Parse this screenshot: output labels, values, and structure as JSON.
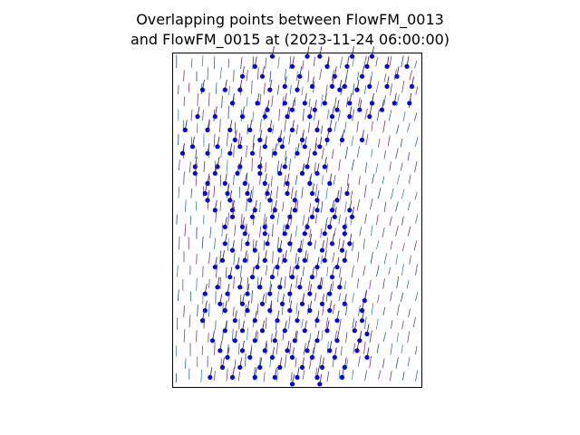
{
  "chart_data": {
    "type": "scatter",
    "title_lines": [
      "Overlapping points between FlowFM_0013",
      "and FlowFM_0015 at (2023-11-24 06:00:00)"
    ],
    "xlabel": "",
    "ylabel": "",
    "ticks": "none",
    "grid": false,
    "legend": "none",
    "description_layers": [
      "velocity quiver arrows (FlowFM_0013)",
      "overlapping points (FlowFM_0015)"
    ],
    "series": [
      {
        "marker_color": "#0000ff",
        "points": [
          [
            0.4,
            0.99
          ],
          [
            0.54,
            0.99
          ],
          [
            0.59,
            0.99
          ],
          [
            0.72,
            0.99
          ],
          [
            0.8,
            0.99
          ],
          [
            0.33,
            0.96
          ],
          [
            0.48,
            0.96
          ],
          [
            0.62,
            0.96
          ],
          [
            0.7,
            0.96
          ],
          [
            0.78,
            0.96
          ],
          [
            0.86,
            0.96
          ],
          [
            0.94,
            0.96
          ],
          [
            0.28,
            0.93
          ],
          [
            0.36,
            0.93
          ],
          [
            0.51,
            0.93
          ],
          [
            0.65,
            0.93
          ],
          [
            0.76,
            0.93
          ],
          [
            0.9,
            0.93
          ],
          [
            0.45,
            0.9
          ],
          [
            0.56,
            0.9
          ],
          [
            0.64,
            0.9
          ],
          [
            0.69,
            0.9
          ],
          [
            0.79,
            0.9
          ],
          [
            0.86,
            0.9
          ],
          [
            0.96,
            0.9
          ],
          [
            0.12,
            0.89
          ],
          [
            0.21,
            0.89
          ],
          [
            0.27,
            0.89
          ],
          [
            0.39,
            0.89
          ],
          [
            0.5,
            0.89
          ],
          [
            0.67,
            0.89
          ],
          [
            0.74,
            0.89
          ],
          [
            0.24,
            0.85
          ],
          [
            0.34,
            0.85
          ],
          [
            0.45,
            0.85
          ],
          [
            0.53,
            0.85
          ],
          [
            0.61,
            0.85
          ],
          [
            0.71,
            0.85
          ],
          [
            0.8,
            0.85
          ],
          [
            0.89,
            0.85
          ],
          [
            0.95,
            0.85
          ],
          [
            0.38,
            0.83
          ],
          [
            0.48,
            0.83
          ],
          [
            0.57,
            0.83
          ],
          [
            0.66,
            0.83
          ],
          [
            0.75,
            0.83
          ],
          [
            0.84,
            0.83
          ],
          [
            0.1,
            0.81
          ],
          [
            0.17,
            0.81
          ],
          [
            0.28,
            0.81
          ],
          [
            0.37,
            0.81
          ],
          [
            0.46,
            0.81
          ],
          [
            0.55,
            0.81
          ],
          [
            0.64,
            0.81
          ],
          [
            0.71,
            0.81
          ],
          [
            0.79,
            0.81
          ],
          [
            0.05,
            0.77
          ],
          [
            0.14,
            0.77
          ],
          [
            0.23,
            0.77
          ],
          [
            0.31,
            0.77
          ],
          [
            0.39,
            0.77
          ],
          [
            0.48,
            0.77
          ],
          [
            0.58,
            0.77
          ],
          [
            0.63,
            0.77
          ],
          [
            0.25,
            0.74
          ],
          [
            0.35,
            0.74
          ],
          [
            0.43,
            0.74
          ],
          [
            0.52,
            0.74
          ],
          [
            0.62,
            0.74
          ],
          [
            0.68,
            0.74
          ],
          [
            0.76,
            0.74
          ],
          [
            0.08,
            0.72
          ],
          [
            0.18,
            0.72
          ],
          [
            0.27,
            0.72
          ],
          [
            0.37,
            0.72
          ],
          [
            0.44,
            0.72
          ],
          [
            0.53,
            0.72
          ],
          [
            0.59,
            0.72
          ],
          [
            0.04,
            0.7
          ],
          [
            0.14,
            0.7
          ],
          [
            0.23,
            0.7
          ],
          [
            0.32,
            0.7
          ],
          [
            0.41,
            0.7
          ],
          [
            0.5,
            0.7
          ],
          [
            0.57,
            0.7
          ],
          [
            0.09,
            0.66
          ],
          [
            0.18,
            0.66
          ],
          [
            0.27,
            0.66
          ],
          [
            0.35,
            0.66
          ],
          [
            0.45,
            0.66
          ],
          [
            0.54,
            0.66
          ],
          [
            0.61,
            0.66
          ],
          [
            0.09,
            0.64
          ],
          [
            0.17,
            0.64
          ],
          [
            0.26,
            0.64
          ],
          [
            0.35,
            0.64
          ],
          [
            0.43,
            0.64
          ],
          [
            0.52,
            0.64
          ],
          [
            0.58,
            0.64
          ],
          [
            0.14,
            0.61
          ],
          [
            0.21,
            0.61
          ],
          [
            0.29,
            0.61
          ],
          [
            0.37,
            0.61
          ],
          [
            0.46,
            0.61
          ],
          [
            0.55,
            0.61
          ],
          [
            0.63,
            0.61
          ],
          [
            0.13,
            0.58
          ],
          [
            0.22,
            0.58
          ],
          [
            0.3,
            0.58
          ],
          [
            0.38,
            0.58
          ],
          [
            0.46,
            0.58
          ],
          [
            0.56,
            0.58
          ],
          [
            0.7,
            0.58
          ],
          [
            0.14,
            0.56
          ],
          [
            0.23,
            0.56
          ],
          [
            0.31,
            0.56
          ],
          [
            0.39,
            0.56
          ],
          [
            0.49,
            0.56
          ],
          [
            0.58,
            0.56
          ],
          [
            0.66,
            0.56
          ],
          [
            0.17,
            0.53
          ],
          [
            0.24,
            0.53
          ],
          [
            0.33,
            0.53
          ],
          [
            0.41,
            0.53
          ],
          [
            0.49,
            0.53
          ],
          [
            0.58,
            0.53
          ],
          [
            0.64,
            0.53
          ],
          [
            0.71,
            0.53
          ],
          [
            0.24,
            0.51
          ],
          [
            0.32,
            0.51
          ],
          [
            0.4,
            0.51
          ],
          [
            0.47,
            0.51
          ],
          [
            0.56,
            0.51
          ],
          [
            0.65,
            0.51
          ],
          [
            0.72,
            0.51
          ],
          [
            0.21,
            0.48
          ],
          [
            0.28,
            0.48
          ],
          [
            0.37,
            0.48
          ],
          [
            0.46,
            0.48
          ],
          [
            0.54,
            0.48
          ],
          [
            0.63,
            0.48
          ],
          [
            0.69,
            0.48
          ],
          [
            0.29,
            0.46
          ],
          [
            0.37,
            0.46
          ],
          [
            0.45,
            0.46
          ],
          [
            0.53,
            0.46
          ],
          [
            0.61,
            0.46
          ],
          [
            0.69,
            0.46
          ],
          [
            0.21,
            0.43
          ],
          [
            0.3,
            0.43
          ],
          [
            0.38,
            0.43
          ],
          [
            0.47,
            0.43
          ],
          [
            0.55,
            0.43
          ],
          [
            0.64,
            0.43
          ],
          [
            0.71,
            0.43
          ],
          [
            0.24,
            0.41
          ],
          [
            0.33,
            0.41
          ],
          [
            0.43,
            0.41
          ],
          [
            0.51,
            0.41
          ],
          [
            0.6,
            0.41
          ],
          [
            0.68,
            0.41
          ],
          [
            0.2,
            0.38
          ],
          [
            0.29,
            0.38
          ],
          [
            0.37,
            0.38
          ],
          [
            0.45,
            0.38
          ],
          [
            0.53,
            0.38
          ],
          [
            0.61,
            0.38
          ],
          [
            0.69,
            0.38
          ],
          [
            0.17,
            0.36
          ],
          [
            0.26,
            0.36
          ],
          [
            0.34,
            0.36
          ],
          [
            0.42,
            0.36
          ],
          [
            0.5,
            0.36
          ],
          [
            0.58,
            0.36
          ],
          [
            0.66,
            0.36
          ],
          [
            0.23,
            0.33
          ],
          [
            0.32,
            0.33
          ],
          [
            0.4,
            0.33
          ],
          [
            0.48,
            0.33
          ],
          [
            0.56,
            0.33
          ],
          [
            0.64,
            0.33
          ],
          [
            0.18,
            0.3
          ],
          [
            0.27,
            0.3
          ],
          [
            0.35,
            0.3
          ],
          [
            0.43,
            0.3
          ],
          [
            0.51,
            0.3
          ],
          [
            0.59,
            0.3
          ],
          [
            0.67,
            0.3
          ],
          [
            0.13,
            0.28
          ],
          [
            0.22,
            0.28
          ],
          [
            0.3,
            0.28
          ],
          [
            0.39,
            0.28
          ],
          [
            0.47,
            0.28
          ],
          [
            0.55,
            0.28
          ],
          [
            0.63,
            0.28
          ],
          [
            0.19,
            0.25
          ],
          [
            0.28,
            0.25
          ],
          [
            0.36,
            0.25
          ],
          [
            0.44,
            0.25
          ],
          [
            0.52,
            0.25
          ],
          [
            0.6,
            0.25
          ],
          [
            0.69,
            0.25
          ],
          [
            0.77,
            0.26
          ],
          [
            0.13,
            0.23
          ],
          [
            0.21,
            0.23
          ],
          [
            0.3,
            0.23
          ],
          [
            0.39,
            0.23
          ],
          [
            0.47,
            0.23
          ],
          [
            0.55,
            0.23
          ],
          [
            0.63,
            0.23
          ],
          [
            0.76,
            0.23
          ],
          [
            0.12,
            0.2
          ],
          [
            0.25,
            0.2
          ],
          [
            0.33,
            0.2
          ],
          [
            0.42,
            0.2
          ],
          [
            0.5,
            0.2
          ],
          [
            0.58,
            0.2
          ],
          [
            0.66,
            0.2
          ],
          [
            0.76,
            0.2
          ],
          [
            0.21,
            0.17
          ],
          [
            0.28,
            0.17
          ],
          [
            0.36,
            0.17
          ],
          [
            0.45,
            0.17
          ],
          [
            0.53,
            0.17
          ],
          [
            0.62,
            0.17
          ],
          [
            0.73,
            0.17
          ],
          [
            0.78,
            0.16
          ],
          [
            0.16,
            0.14
          ],
          [
            0.25,
            0.14
          ],
          [
            0.33,
            0.14
          ],
          [
            0.41,
            0.14
          ],
          [
            0.49,
            0.14
          ],
          [
            0.58,
            0.14
          ],
          [
            0.66,
            0.14
          ],
          [
            0.75,
            0.14
          ],
          [
            0.19,
            0.11
          ],
          [
            0.28,
            0.11
          ],
          [
            0.37,
            0.11
          ],
          [
            0.46,
            0.11
          ],
          [
            0.54,
            0.11
          ],
          [
            0.63,
            0.11
          ],
          [
            0.74,
            0.11
          ],
          [
            0.22,
            0.09
          ],
          [
            0.31,
            0.09
          ],
          [
            0.4,
            0.09
          ],
          [
            0.48,
            0.09
          ],
          [
            0.56,
            0.09
          ],
          [
            0.65,
            0.09
          ],
          [
            0.78,
            0.09
          ],
          [
            0.2,
            0.06
          ],
          [
            0.27,
            0.06
          ],
          [
            0.35,
            0.06
          ],
          [
            0.43,
            0.06
          ],
          [
            0.52,
            0.06
          ],
          [
            0.6,
            0.06
          ],
          [
            0.69,
            0.06
          ],
          [
            0.15,
            0.03
          ],
          [
            0.24,
            0.03
          ],
          [
            0.33,
            0.03
          ],
          [
            0.41,
            0.03
          ],
          [
            0.5,
            0.03
          ],
          [
            0.58,
            0.03
          ],
          [
            0.68,
            0.03
          ],
          [
            0.48,
            0.01
          ],
          [
            0.59,
            0.01
          ]
        ]
      }
    ]
  }
}
